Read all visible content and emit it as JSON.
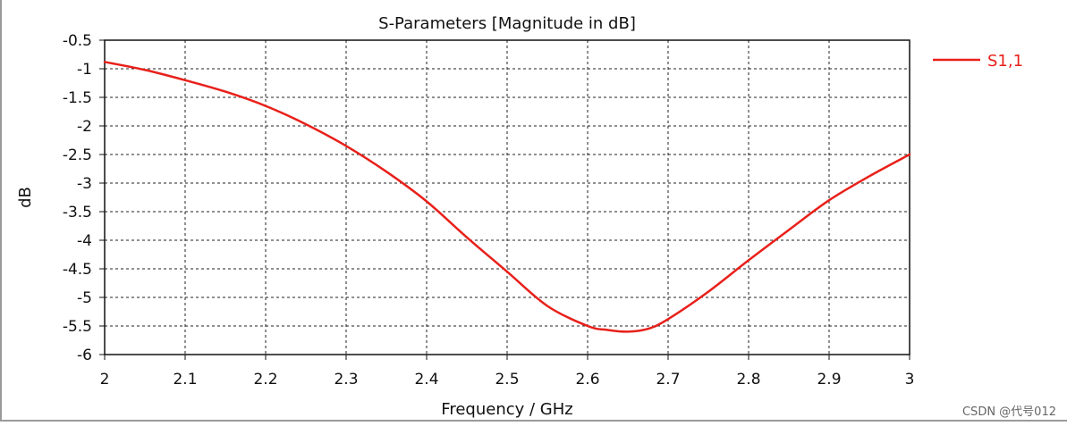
{
  "chart_data": {
    "type": "line",
    "title": "S-Parameters [Magnitude in dB]",
    "xlabel": "Frequency / GHz",
    "ylabel": "dB",
    "xlim": [
      2,
      3
    ],
    "ylim": [
      -6,
      -0.5
    ],
    "xticks": [
      2,
      2.1,
      2.2,
      2.3,
      2.4,
      2.5,
      2.6,
      2.7,
      2.8,
      2.9,
      3
    ],
    "xtick_labels": [
      "2",
      "2.1",
      "2.2",
      "2.3",
      "2.4",
      "2.5",
      "2.6",
      "2.7",
      "2.8",
      "2.9",
      "3"
    ],
    "yticks": [
      -0.5,
      -1,
      -1.5,
      -2,
      -2.5,
      -3,
      -3.5,
      -4,
      -4.5,
      -5,
      -5.5,
      -6
    ],
    "ytick_labels": [
      "-0.5",
      "-1",
      "-1.5",
      "-2",
      "-2.5",
      "-3",
      "-3.5",
      "-4",
      "-4.5",
      "-5",
      "-5.5",
      "-6"
    ],
    "grid": true,
    "legend_position": "right",
    "series": [
      {
        "name": "S1,1",
        "color": "#e8201a",
        "x": [
          2,
          2.05,
          2.1,
          2.15,
          2.2,
          2.25,
          2.3,
          2.35,
          2.4,
          2.45,
          2.5,
          2.55,
          2.6,
          2.625,
          2.65,
          2.675,
          2.7,
          2.75,
          2.8,
          2.85,
          2.9,
          2.95,
          3
        ],
        "values": [
          -0.88,
          -1.02,
          -1.2,
          -1.4,
          -1.65,
          -1.97,
          -2.35,
          -2.8,
          -3.32,
          -3.95,
          -4.55,
          -5.15,
          -5.5,
          -5.57,
          -5.6,
          -5.55,
          -5.38,
          -4.9,
          -4.35,
          -3.82,
          -3.3,
          -2.88,
          -2.5
        ]
      }
    ]
  },
  "watermark": "CSDN @代号012"
}
